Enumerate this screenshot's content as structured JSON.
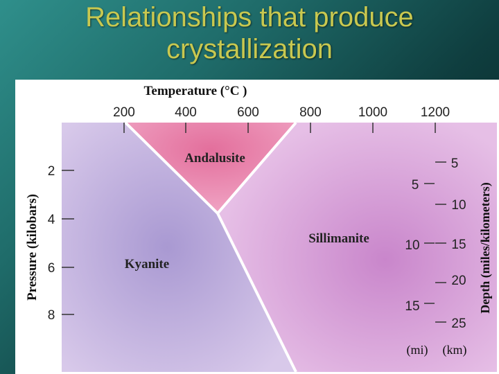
{
  "slide": {
    "title_line1": "Relationships that produce",
    "title_line2": "crystallization"
  },
  "diagram": {
    "top_axis_label": "Temperature (°C )",
    "temperature_ticks": [
      "200",
      "400",
      "600",
      "800",
      "1000",
      "1200"
    ],
    "left_axis_label": "Pressure (kilobars)",
    "pressure_ticks": [
      "2",
      "4",
      "6",
      "8"
    ],
    "right_axis_label": "Depth (miles/kilometers)",
    "mile_ticks": [
      "5",
      "10",
      "15"
    ],
    "km_ticks": [
      "5",
      "10",
      "15",
      "20",
      "25"
    ],
    "mile_unit": "(mi)",
    "km_unit": "(km)",
    "regions": {
      "andalusite": "Andalusite",
      "sillimanite": "Sillimanite",
      "kyanite": "Kyanite"
    },
    "colors": {
      "andalusite": "#e07aa0",
      "sillimanite": "#d49ad3",
      "kyanite": "#b7a2d6",
      "boundary": "#ffffff"
    }
  }
}
